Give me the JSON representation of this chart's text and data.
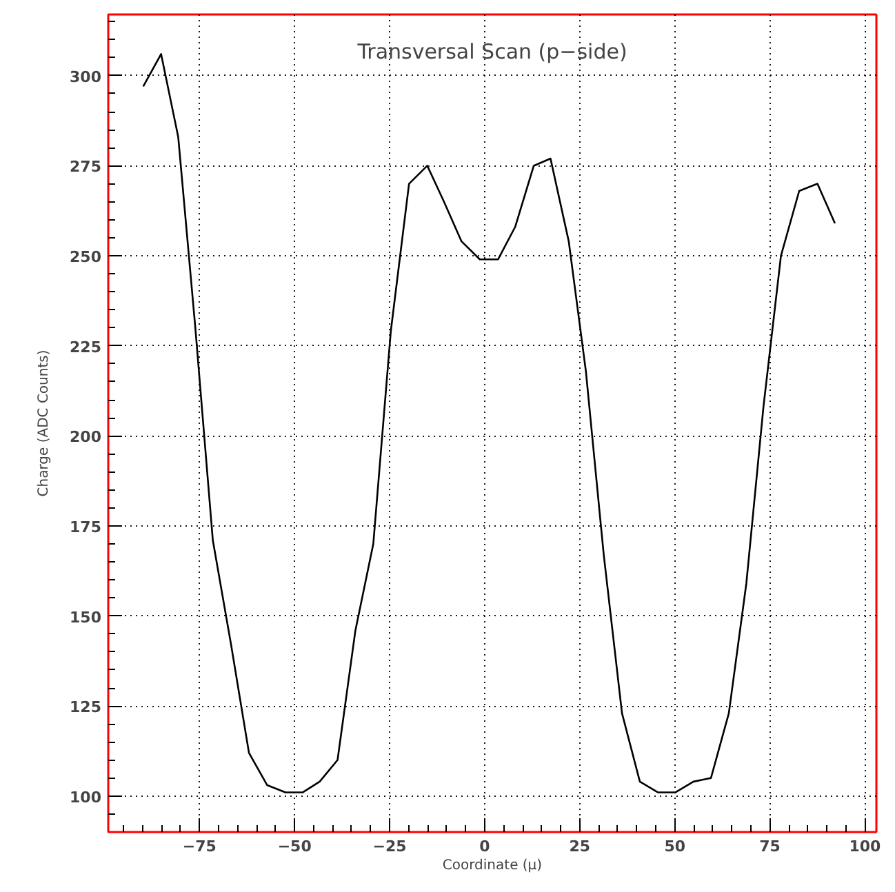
{
  "chart_data": {
    "type": "line",
    "title": "Transversal Scan (p−side)",
    "xlabel": "Coordinate (μ)",
    "ylabel": "Charge (ADC Counts)",
    "x": [
      -89.8,
      -85.1,
      -80.6,
      -76.1,
      -71.5,
      -66.7,
      -62.0,
      -57.2,
      -52.4,
      -47.9,
      -43.4,
      -38.7,
      -34.0,
      -29.3,
      -24.7,
      -19.9,
      -15.1,
      -10.7,
      -6.1,
      -1.3,
      3.5,
      8.0,
      12.9,
      17.3,
      22.1,
      26.6,
      31.3,
      36.1,
      40.8,
      45.6,
      50.1,
      54.9,
      59.5,
      64.2,
      68.8,
      73.3,
      77.9,
      82.7,
      87.5,
      92.1
    ],
    "series": [
      {
        "color": "#000000",
        "values": [
          297,
          306,
          283,
          230,
          171,
          142,
          112,
          103,
          101,
          101,
          104,
          110,
          146,
          170,
          229,
          270,
          275,
          265,
          254,
          249,
          249,
          258,
          275,
          277,
          254,
          218,
          167,
          123,
          104,
          101,
          101,
          104,
          105,
          123,
          159,
          208,
          250,
          268,
          270,
          259
        ]
      }
    ],
    "xlim": [
      -99,
      103
    ],
    "ylim": [
      90,
      317
    ],
    "xticks": [
      -75,
      -50,
      -25,
      0,
      25,
      50,
      75,
      100
    ],
    "yticks": [
      100,
      125,
      150,
      175,
      200,
      225,
      250,
      275,
      300
    ],
    "grid": true,
    "line_style": "solid",
    "marker": "none"
  }
}
